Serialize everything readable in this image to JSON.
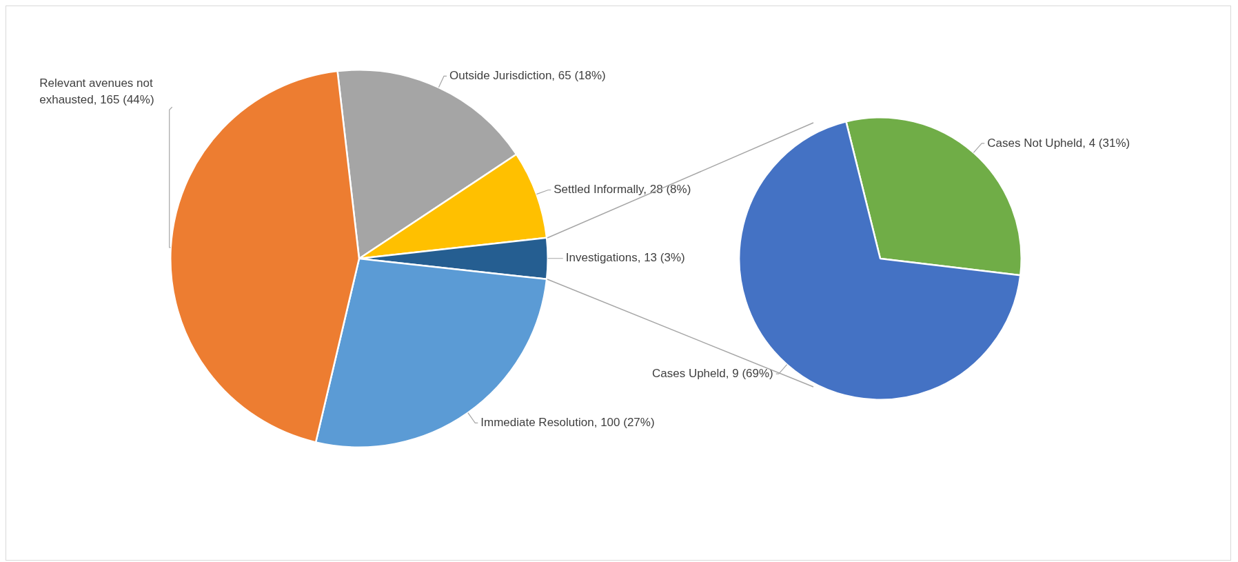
{
  "chart_data": [
    {
      "type": "pie",
      "categories": [
        "Outside Jurisdiction",
        "Settled Informally",
        "Investigations",
        "Immediate Resolution",
        "Relevant avenues not exhausted"
      ],
      "values": [
        65,
        28,
        13,
        100,
        165
      ],
      "colors": [
        "#a5a5a5",
        "#ffc000",
        "#255e91",
        "#5b9bd5",
        "#ed7d31"
      ],
      "value_labels": [
        "65 (18%)",
        "28 (8%)",
        "13 (3%)",
        "100 (27%)",
        "165 (44%)"
      ]
    },
    {
      "type": "pie",
      "categories": [
        "Cases Not Upheld",
        "Cases Upheld"
      ],
      "values": [
        4,
        9
      ],
      "colors": [
        "#70ad47",
        "#4472c4"
      ],
      "value_labels": [
        "4 (31%)",
        "9 (69%)"
      ]
    }
  ]
}
